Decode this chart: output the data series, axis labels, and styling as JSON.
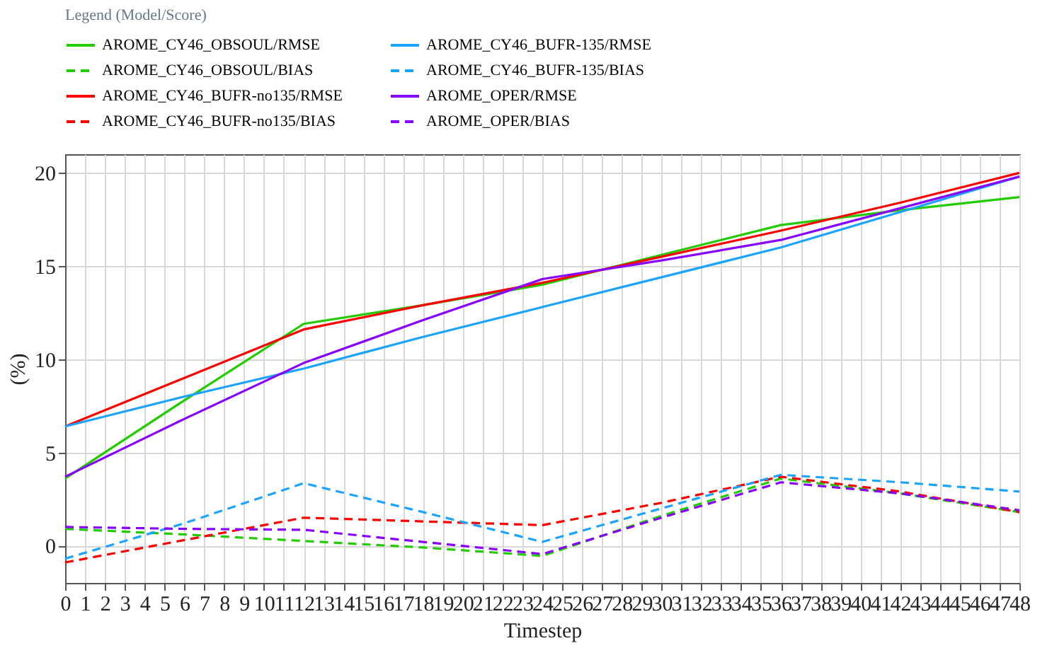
{
  "chart_data": {
    "type": "line",
    "xlabel": "Timestep",
    "ylabel": "(%)",
    "legend_title": "Legend (Model/Score)",
    "legend": "top left",
    "grid": true,
    "x": [
      0,
      6,
      12,
      18,
      24,
      30,
      36,
      42,
      48
    ],
    "xlim": [
      0,
      48
    ],
    "xticks": [
      0,
      1,
      2,
      3,
      4,
      5,
      6,
      7,
      8,
      9,
      10,
      11,
      12,
      13,
      14,
      15,
      16,
      17,
      18,
      19,
      20,
      21,
      22,
      23,
      24,
      25,
      26,
      27,
      28,
      29,
      30,
      31,
      32,
      33,
      34,
      35,
      36,
      37,
      38,
      39,
      40,
      41,
      42,
      43,
      44,
      45,
      46,
      47,
      48
    ],
    "ylim": [
      -2,
      21
    ],
    "yticks": [
      0,
      5,
      10,
      15,
      20
    ],
    "series": [
      {
        "name": "AROME_CY46_OBSOUL/RMSE",
        "color": "#22cc00",
        "line_style": "solid",
        "values": [
          3.6,
          7.8,
          11.9,
          12.9,
          14.0,
          15.6,
          17.2,
          18.0,
          18.7
        ]
      },
      {
        "name": "AROME_CY46_OBSOUL/BIAS",
        "color": "#22cc00",
        "line_style": "dashed",
        "values": [
          0.9,
          0.6,
          0.25,
          -0.1,
          -0.55,
          1.6,
          3.6,
          2.8,
          1.8
        ]
      },
      {
        "name": "AROME_CY46_BUFR-no135/RMSE",
        "color": "#ff0000",
        "line_style": "solid",
        "values": [
          6.4,
          9.0,
          11.6,
          12.9,
          14.1,
          15.5,
          16.9,
          18.4,
          20.0
        ]
      },
      {
        "name": "AROME_CY46_BUFR-no135/BIAS",
        "color": "#ff0000",
        "line_style": "dashed",
        "values": [
          -0.9,
          0.3,
          1.5,
          1.3,
          1.1,
          2.3,
          3.7,
          2.9,
          1.8
        ]
      },
      {
        "name": "AROME_CY46_BUFR-135/RMSE",
        "color": "#1aa3ff",
        "line_style": "solid",
        "values": [
          6.4,
          8.0,
          9.5,
          11.2,
          12.8,
          14.4,
          16.0,
          17.9,
          19.8
        ]
      },
      {
        "name": "AROME_CY46_BUFR-135/BIAS",
        "color": "#1aa3ff",
        "line_style": "dashed",
        "values": [
          -0.7,
          1.2,
          3.35,
          1.8,
          0.2,
          2.0,
          3.8,
          3.4,
          2.9
        ]
      },
      {
        "name": "AROME_OPER/RMSE",
        "color": "#8800ff",
        "line_style": "solid",
        "values": [
          3.7,
          6.8,
          9.8,
          12.1,
          14.3,
          15.3,
          16.4,
          18.1,
          19.8
        ]
      },
      {
        "name": "AROME_OPER/BIAS",
        "color": "#8800ff",
        "line_style": "dashed",
        "values": [
          1.0,
          0.9,
          0.85,
          0.2,
          -0.45,
          1.5,
          3.4,
          2.8,
          1.9
        ]
      }
    ]
  }
}
